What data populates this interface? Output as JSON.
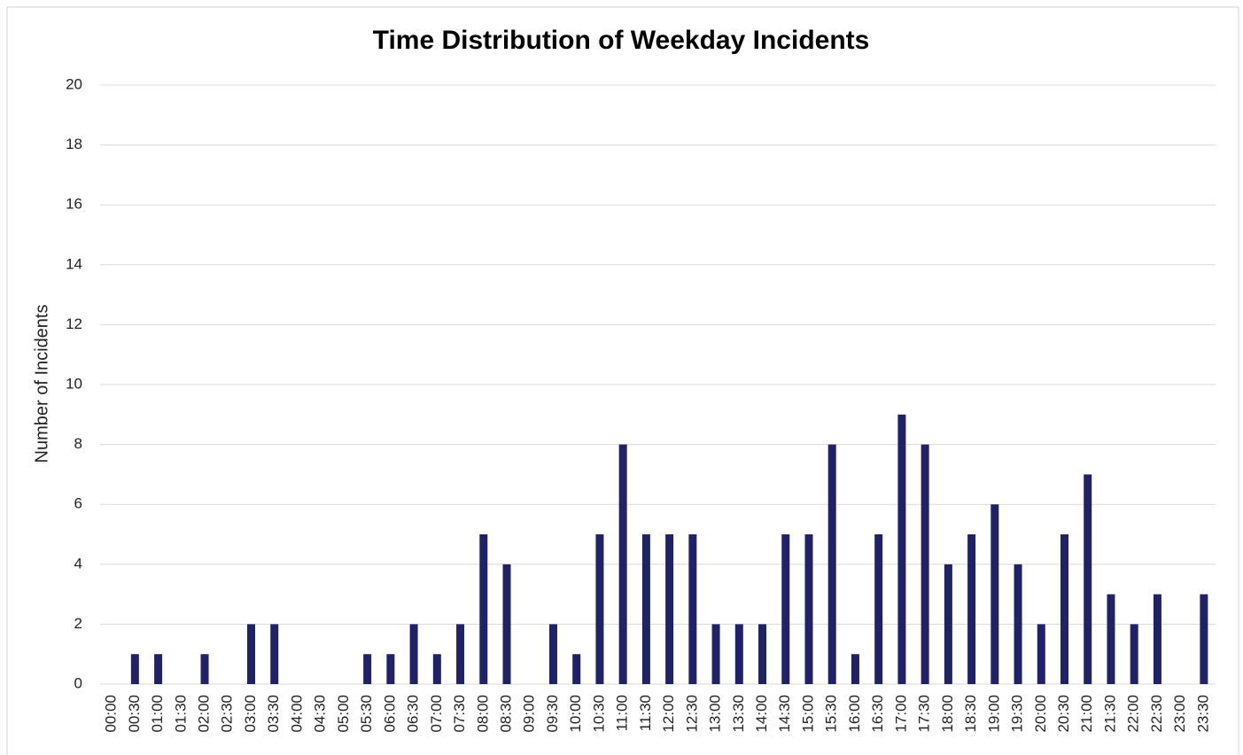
{
  "chart_data": {
    "type": "bar",
    "title": "Time Distribution of Weekday Incidents",
    "y_label": "Number of  Incidents",
    "categories": [
      "00:00",
      "00:30",
      "01:00",
      "01:30",
      "02:00",
      "02:30",
      "03:00",
      "03:30",
      "04:00",
      "04:30",
      "05:00",
      "05:30",
      "06:00",
      "06:30",
      "07:00",
      "07:30",
      "08:00",
      "08:30",
      "09:00",
      "09:30",
      "10:00",
      "10:30",
      "11:00",
      "11:30",
      "12:00",
      "12:30",
      "13:00",
      "13:30",
      "14:00",
      "14:30",
      "15:00",
      "15:30",
      "16:00",
      "16:30",
      "17:00",
      "17:30",
      "18:00",
      "18:30",
      "19:00",
      "19:30",
      "20:00",
      "20:30",
      "21:00",
      "21:30",
      "22:00",
      "22:30",
      "23:00",
      "23:30"
    ],
    "values": [
      0,
      1,
      1,
      0,
      1,
      0,
      2,
      2,
      0,
      0,
      0,
      1,
      1,
      2,
      1,
      2,
      5,
      4,
      0,
      2,
      1,
      5,
      8,
      5,
      5,
      5,
      2,
      2,
      2,
      5,
      5,
      8,
      1,
      5,
      9,
      8,
      4,
      5,
      6,
      4,
      2,
      5,
      7,
      3,
      2,
      3,
      0,
      3
    ],
    "color": "#1f2266",
    "ylim": [
      0,
      20
    ],
    "yticks": [
      0,
      2,
      4,
      6,
      8,
      10,
      12,
      14,
      16,
      18,
      20
    ],
    "grid": true
  }
}
